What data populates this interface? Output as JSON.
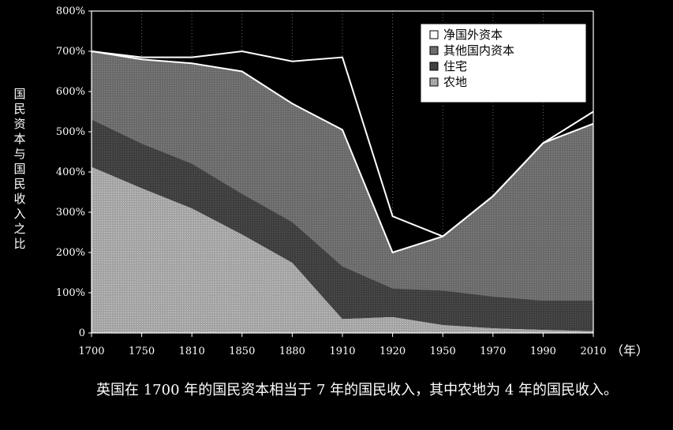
{
  "chart_data": {
    "type": "area",
    "stacked": true,
    "ylabel": "国民资本与国民收入之比",
    "x_unit": "（年）",
    "x": [
      1700,
      1750,
      1810,
      1850,
      1880,
      1910,
      1920,
      1950,
      1970,
      1990,
      2010
    ],
    "x_tick_labels": [
      "1700",
      "1750",
      "1810",
      "1850",
      "1880",
      "1910",
      "1920",
      "1950",
      "1970",
      "1990",
      "2010"
    ],
    "y_ticks": [
      0,
      100,
      200,
      300,
      400,
      500,
      600,
      700,
      800
    ],
    "y_tick_labels": [
      "0",
      "100%",
      "200%",
      "300%",
      "400%",
      "500%",
      "600%",
      "700%",
      "800%"
    ],
    "ylim": [
      0,
      800
    ],
    "grid": "vertical dotted",
    "legend_position": "top-right",
    "series": [
      {
        "name": "农地",
        "color": "#a9a9a9",
        "values": [
          413,
          360,
          310,
          245,
          175,
          35,
          40,
          20,
          12,
          8,
          5
        ]
      },
      {
        "name": "住宅",
        "color": "#444444",
        "values": [
          117,
          110,
          110,
          100,
          100,
          130,
          70,
          85,
          78,
          72,
          75
        ]
      },
      {
        "name": "其他国内资本",
        "color": "#6f6f6f",
        "values": [
          170,
          210,
          250,
          305,
          295,
          340,
          90,
          135,
          250,
          392,
          440
        ]
      },
      {
        "name": "净国外资本",
        "color": "#000000",
        "values": [
          0,
          5,
          15,
          50,
          105,
          180,
          90,
          0,
          0,
          0,
          30
        ]
      }
    ]
  },
  "caption": "英国在 1700 年的国民资本相当于 7 年的国民收入，其中农地为 4 年的国民收入。"
}
